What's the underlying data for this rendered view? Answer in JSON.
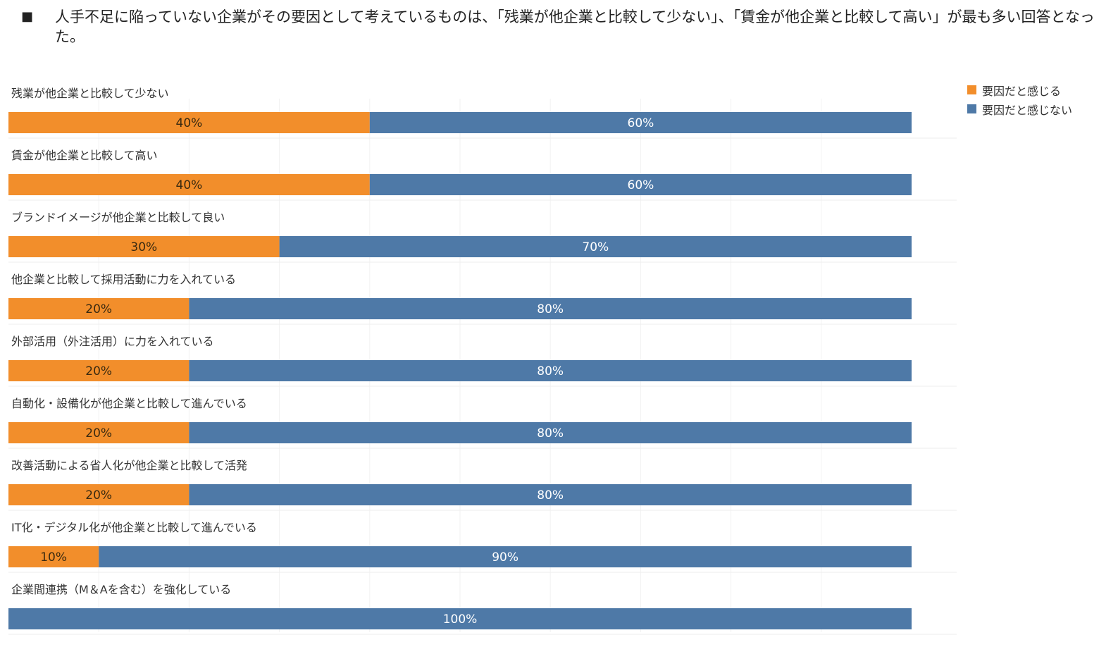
{
  "headline": {
    "bullet": "■",
    "text": "人手不足に陥っていない企業がその要因として考えているものは、「残業が他企業と比較して少ない」、「賃金が他企業と比較して高い」が最も多い回答となった。"
  },
  "legend": {
    "items": [
      {
        "label": "要因だと感じる",
        "color": "#F28E2B"
      },
      {
        "label": "要因だと感じない",
        "color": "#4E79A7"
      }
    ]
  },
  "chart_data": {
    "type": "bar",
    "orientation": "horizontal",
    "stacked": true,
    "xlim": [
      0,
      100
    ],
    "grid": true,
    "legend_position": "top-right",
    "categories": [
      "残業が他企業と比較して少ない",
      "賃金が他企業と比較して高い",
      "ブランドイメージが他企業と比較して良い",
      "他企業と比較して採用活動に力を入れている",
      "外部活用（外注活用）に力を入れている",
      "自動化・設備化が他企業と比較して進んでいる",
      "改善活動による省人化が他企業と比較して活発",
      "IT化・デジタル化が他企業と比較して進んでいる",
      "企業間連携（M＆Aを含む）を強化している"
    ],
    "series": [
      {
        "name": "要因だと感じる",
        "color": "#F28E2B",
        "values": [
          40,
          40,
          30,
          20,
          20,
          20,
          20,
          10,
          0
        ],
        "labels": [
          "40%",
          "40%",
          "30%",
          "20%",
          "20%",
          "20%",
          "20%",
          "10%",
          ""
        ]
      },
      {
        "name": "要因だと感じない",
        "color": "#4E79A7",
        "values": [
          60,
          60,
          70,
          80,
          80,
          80,
          80,
          90,
          100
        ],
        "labels": [
          "60%",
          "60%",
          "70%",
          "80%",
          "80%",
          "80%",
          "80%",
          "90%",
          "100%"
        ]
      }
    ]
  }
}
